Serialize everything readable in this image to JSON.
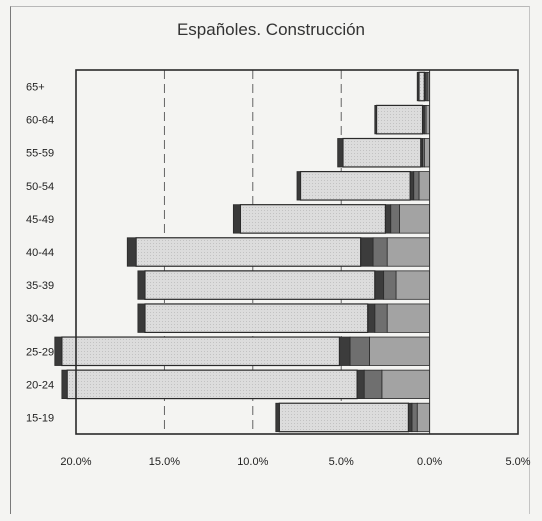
{
  "chart_data": {
    "type": "bar",
    "orientation": "horizontal",
    "stacked": true,
    "title": "Españoles. Construcción",
    "categories": [
      "15-19",
      "20-24",
      "25-29",
      "30-34",
      "35-39",
      "40-44",
      "45-49",
      "50-54",
      "55-59",
      "60-64",
      "65+"
    ],
    "series": [
      {
        "values": [
          0.7,
          2.7,
          3.4,
          2.4,
          1.9,
          2.4,
          1.7,
          0.6,
          0.3,
          0.2,
          0.1
        ],
        "color": "#a3a3a3"
      },
      {
        "values": [
          0.3,
          1.0,
          1.1,
          0.7,
          0.7,
          0.8,
          0.5,
          0.3,
          0.1,
          0.1,
          0.1
        ],
        "color": "#6f6f6f"
      },
      {
        "values": [
          0.2,
          0.4,
          0.6,
          0.4,
          0.5,
          0.7,
          0.3,
          0.2,
          0.1,
          0.1,
          0.1
        ],
        "color": "#3c3c3c"
      },
      {
        "values": [
          7.3,
          16.4,
          15.7,
          12.6,
          13.0,
          12.7,
          8.2,
          6.2,
          4.4,
          2.6,
          0.3
        ],
        "color": "#dcdcdc"
      },
      {
        "values": [
          0.2,
          0.3,
          0.4,
          0.4,
          0.4,
          0.5,
          0.4,
          0.2,
          0.3,
          0.1,
          0.1
        ],
        "color": "#3a3a3a"
      }
    ],
    "xlim": [
      20,
      -5
    ],
    "xticks": [
      20,
      15,
      10,
      5,
      0,
      -5
    ],
    "xtick_labels": [
      "20.0%",
      "15.0%",
      "10.0%",
      "5.0%",
      "0.0%",
      "5.0%"
    ],
    "gridlines_at": [
      15,
      10,
      5
    ],
    "grid": "vertical dashed"
  }
}
